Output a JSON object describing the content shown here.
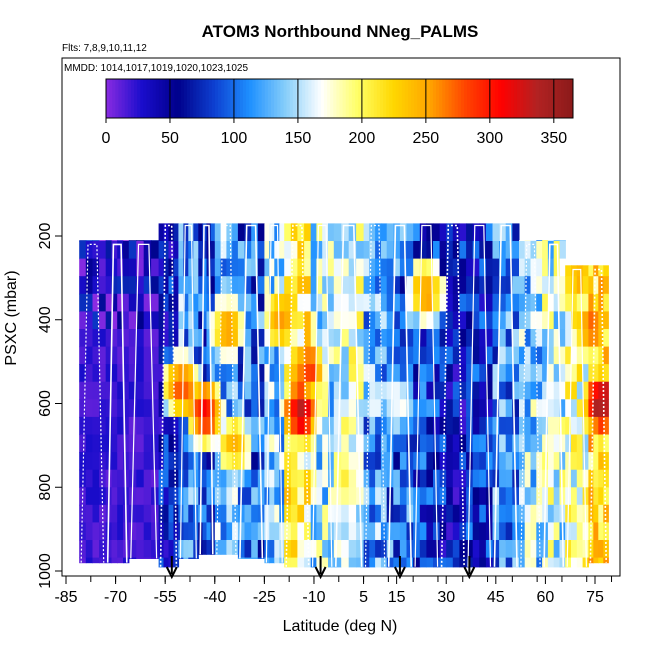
{
  "chart_data": {
    "type": "heatmap",
    "title": "ATOM3 Northbound NNeg_PALMS",
    "subtitle_flights": "Flts: 7,8,9,10,11,12",
    "subtitle_dates": "MMDD: 1014,1017,1019,1020,1023,1025",
    "xlabel": "Latitude (deg N)",
    "ylabel": "PSXC (mbar)",
    "xlim": [
      -86,
      84
    ],
    "ylim": [
      1000,
      150
    ],
    "x_ticks": [
      -85,
      -70,
      -55,
      -40,
      -25,
      -10,
      5,
      15,
      30,
      45,
      60,
      75
    ],
    "y_ticks": [
      200,
      400,
      600,
      800,
      1000
    ],
    "colorbar": {
      "range": [
        0,
        365
      ],
      "ticks": [
        0,
        50,
        100,
        150,
        200,
        250,
        300,
        350
      ],
      "colors": [
        "#8a2be2",
        "#1a0dcc",
        "#00008b",
        "#0d3fd0",
        "#1e90ff",
        "#87cefa",
        "#ffffff",
        "#ffff66",
        "#ffd700",
        "#ffa500",
        "#ff4500",
        "#ff0000",
        "#b22222",
        "#8b1a1a"
      ]
    },
    "flight_start_arrows_lat": [
      -53,
      -8,
      16,
      37
    ],
    "profile_columns": [
      {
        "lat_start": -81,
        "lat_end": -73,
        "p_top": 210,
        "p_bot": 980,
        "base": 40
      },
      {
        "lat_start": -73,
        "lat_end": -66,
        "p_top": 210,
        "p_bot": 980,
        "base": 35
      },
      {
        "lat_start": -66,
        "lat_end": -57,
        "p_top": 210,
        "p_bot": 970,
        "base": 45
      },
      {
        "lat_start": -57,
        "lat_end": -51,
        "p_top": 165,
        "p_bot": 990,
        "base": 60
      },
      {
        "lat_start": -51,
        "lat_end": -45,
        "p_top": 165,
        "p_bot": 970,
        "base": 120
      },
      {
        "lat_start": -45,
        "lat_end": -40,
        "p_top": 165,
        "p_bot": 960,
        "base": 90
      },
      {
        "lat_start": -40,
        "lat_end": -33,
        "p_top": 165,
        "p_bot": 960,
        "base": 130
      },
      {
        "lat_start": -33,
        "lat_end": -25,
        "p_top": 165,
        "p_bot": 970,
        "base": 100
      },
      {
        "lat_start": -25,
        "lat_end": -19,
        "p_top": 165,
        "p_bot": 980,
        "base": 140
      },
      {
        "lat_start": -19,
        "lat_end": -11,
        "p_top": 165,
        "p_bot": 990,
        "base": 200
      },
      {
        "lat_start": -11,
        "lat_end": -4,
        "p_top": 165,
        "p_bot": 990,
        "base": 150
      },
      {
        "lat_start": -4,
        "lat_end": 5,
        "p_top": 165,
        "p_bot": 990,
        "base": 170
      },
      {
        "lat_start": 5,
        "lat_end": 12,
        "p_top": 165,
        "p_bot": 990,
        "base": 120
      },
      {
        "lat_start": 12,
        "lat_end": 20,
        "p_top": 165,
        "p_bot": 990,
        "base": 100
      },
      {
        "lat_start": 20,
        "lat_end": 28,
        "p_top": 165,
        "p_bot": 990,
        "base": 80
      },
      {
        "lat_start": 28,
        "lat_end": 36,
        "p_top": 165,
        "p_bot": 990,
        "base": 60
      },
      {
        "lat_start": 36,
        "lat_end": 44,
        "p_top": 165,
        "p_bot": 990,
        "base": 70
      },
      {
        "lat_start": 44,
        "lat_end": 52,
        "p_top": 165,
        "p_bot": 990,
        "base": 110
      },
      {
        "lat_start": 52,
        "lat_end": 59,
        "p_top": 210,
        "p_bot": 990,
        "base": 140
      },
      {
        "lat_start": 59,
        "lat_end": 66,
        "p_top": 210,
        "p_bot": 990,
        "base": 160
      },
      {
        "lat_start": 66,
        "lat_end": 73,
        "p_top": 270,
        "p_bot": 990,
        "base": 180
      },
      {
        "lat_start": 73,
        "lat_end": 79,
        "p_top": 270,
        "p_bot": 980,
        "base": 220
      }
    ],
    "hot_spots": [
      {
        "lat": -14,
        "p": 620,
        "value": 320
      },
      {
        "lat": -12,
        "p": 520,
        "value": 280
      },
      {
        "lat": -50,
        "p": 560,
        "value": 270
      },
      {
        "lat": -34,
        "p": 700,
        "value": 230
      },
      {
        "lat": -43,
        "p": 620,
        "value": 300
      },
      {
        "lat": 77,
        "p": 600,
        "value": 340
      },
      {
        "lat": 74,
        "p": 420,
        "value": 260
      },
      {
        "lat": 70,
        "p": 300,
        "value": 240
      },
      {
        "lat": 24,
        "p": 330,
        "value": 250
      },
      {
        "lat": -20,
        "p": 400,
        "value": 250
      },
      {
        "lat": -36,
        "p": 420,
        "value": 240
      },
      {
        "lat": 0,
        "p": 800,
        "value": 190
      },
      {
        "lat": 15,
        "p": 600,
        "value": 160
      }
    ]
  }
}
